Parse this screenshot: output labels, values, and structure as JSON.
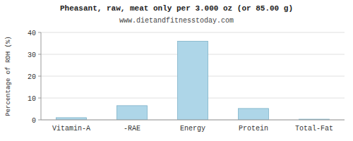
{
  "chart_data": {
    "type": "bar",
    "title": "Pheasant, raw, meat only per 3.000 oz (or 85.00 g)",
    "subtitle": "www.dietandfitnesstoday.com",
    "categories": [
      "Vitamin-A",
      "-RAE",
      "Energy",
      "Protein",
      "Total-Fat"
    ],
    "values": [
      1.0,
      6.5,
      36.0,
      5.2,
      0.3
    ],
    "color": "#aed6e8",
    "ylabel": "Percentage of RDH (%)",
    "ylim": [
      0,
      40
    ],
    "yticks": [
      0,
      10,
      20,
      30,
      40
    ],
    "grid": true
  }
}
